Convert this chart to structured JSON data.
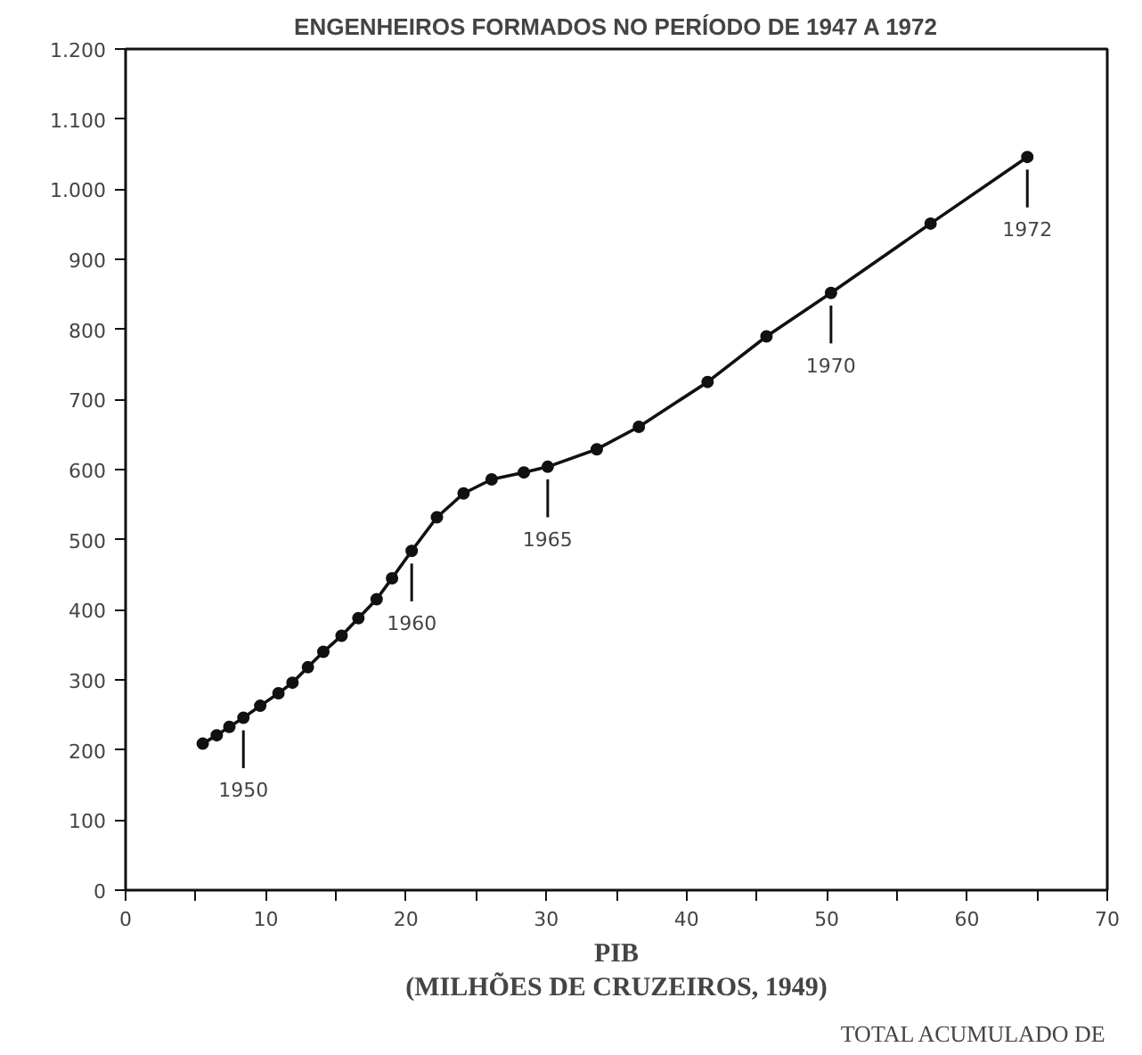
{
  "chart_data": {
    "type": "line",
    "title": "ENGENHEIROS FORMADOS NO PERÍODO DE 1947 A 1972",
    "xlabel": "PIB\n(MILHÕES DE CRUZEIROS, 1949)",
    "x": [
      5.5,
      6.5,
      7.4,
      8.4,
      9.6,
      10.9,
      11.9,
      13.0,
      14.1,
      15.4,
      16.6,
      17.9,
      19.0,
      20.4,
      22.2,
      24.1,
      26.1,
      28.4,
      30.1,
      33.6,
      36.6,
      41.5,
      45.7,
      50.3,
      57.4,
      64.3
    ],
    "series": [
      {
        "color": "#111111",
        "values": [
          209,
          221,
          233,
          246,
          263,
          281,
          296,
          318,
          340,
          363,
          388,
          415,
          445,
          484,
          532,
          566,
          586,
          596,
          604,
          629,
          661,
          725,
          790,
          852,
          951,
          1046
        ]
      }
    ],
    "xlim": [
      0,
      70
    ],
    "ylim": [
      0,
      1200
    ],
    "xticks": [
      0,
      {
        "value": 5,
        "label": null
      },
      10,
      {
        "value": 15,
        "label": null
      },
      20,
      {
        "value": 25,
        "label": null
      },
      30,
      {
        "value": 35,
        "label": null
      },
      40,
      {
        "value": 45,
        "label": null
      },
      50,
      {
        "value": 55,
        "label": null
      },
      60,
      {
        "value": 65,
        "label": null
      },
      70
    ],
    "yticks": [
      0,
      100,
      200,
      300,
      400,
      500,
      600,
      700,
      800,
      900,
      {
        "value": 1000,
        "label": "1.000"
      },
      {
        "value": 1100,
        "label": "1.100"
      },
      {
        "value": 1200,
        "label": "1.200"
      }
    ],
    "annotations": [
      {
        "text": "1950",
        "x": 8.4,
        "y": 246
      },
      {
        "text": "1960",
        "x": 20.4,
        "y": 484
      },
      {
        "text": "1965",
        "x": 30.1,
        "y": 604
      },
      {
        "text": "1970",
        "x": 50.3,
        "y": 852
      },
      {
        "text": "1972",
        "x": 64.3,
        "y": 1046
      },
      "TOTAL ACUMULADO DE"
    ],
    "marker": "circle",
    "line_style": "solid",
    "grid": false
  }
}
